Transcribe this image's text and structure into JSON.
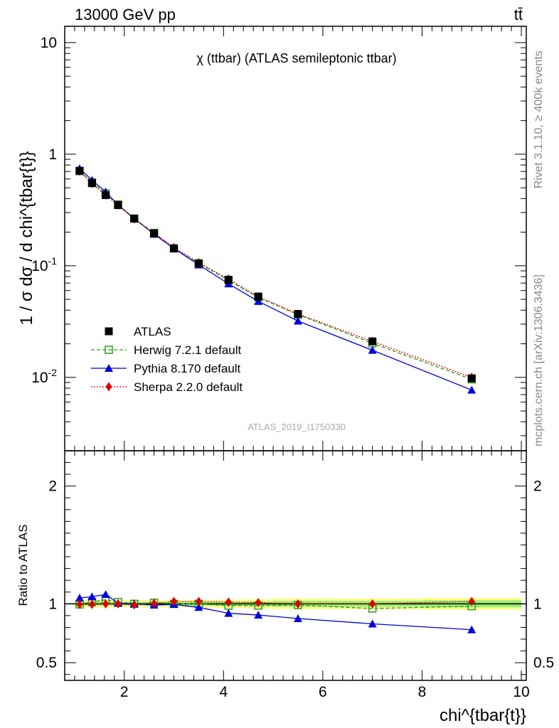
{
  "header": {
    "beam": "13000 GeV pp",
    "process": "tt̄"
  },
  "sidebar": {
    "rivet": "Rivet 3.1.10, ≥ 400k events",
    "source": "mcplots.cern.ch [arXiv:1306.3436]"
  },
  "colors": {
    "atlas": "#000000",
    "herwig": "#2a9a1a",
    "pythia": "#0000dd",
    "sherpa": "#dd0000",
    "band_inner": "#99ee77",
    "band_outer": "#ffff88"
  },
  "chart_data": [
    {
      "type": "scatter",
      "title": "χ (ttbar) (ATLAS semileptonic ttbar)",
      "annotation": "ATLAS_2019_I1750330",
      "ylabel": "1 / σ dσ / d chi^{tbar{t}}",
      "xlabel": "",
      "xlim": [
        0.8,
        10.1
      ],
      "ylim": [
        0.0022,
        14
      ],
      "yscale": "log",
      "yticks": [
        {
          "v": 10,
          "label": "10"
        },
        {
          "v": 1,
          "label": "1"
        },
        {
          "v": 0.1,
          "label": "10^-1"
        },
        {
          "v": 0.01,
          "label": "10^-2"
        }
      ],
      "legend_position": "lower-left",
      "series": [
        {
          "name": "ATLAS",
          "marker": "square",
          "x": [
            1.1,
            1.35,
            1.625,
            1.875,
            2.2,
            2.6,
            3.0,
            3.5,
            4.1,
            4.7,
            5.5,
            7.0,
            9.0
          ],
          "y": [
            0.71,
            0.55,
            0.43,
            0.35,
            0.265,
            0.195,
            0.143,
            0.105,
            0.075,
            0.053,
            0.037,
            0.021,
            0.0098
          ]
        },
        {
          "name": "Herwig 7.2.1 default",
          "marker": "open-square",
          "line": "dashed",
          "x": [
            1.1,
            1.35,
            1.625,
            1.875,
            2.2,
            2.6,
            3.0,
            3.5,
            4.1,
            4.7,
            5.5,
            7.0,
            9.0
          ],
          "y": [
            0.705,
            0.56,
            0.445,
            0.355,
            0.265,
            0.197,
            0.143,
            0.105,
            0.074,
            0.052,
            0.0365,
            0.0202,
            0.0096
          ]
        },
        {
          "name": "Pythia 8.170 default",
          "marker": "triangle",
          "line": "solid",
          "x": [
            1.1,
            1.35,
            1.625,
            1.875,
            2.2,
            2.6,
            3.0,
            3.5,
            4.1,
            4.7,
            5.5,
            7.0,
            9.0
          ],
          "y": [
            0.745,
            0.585,
            0.46,
            0.35,
            0.265,
            0.192,
            0.143,
            0.102,
            0.069,
            0.048,
            0.032,
            0.0175,
            0.0077
          ]
        },
        {
          "name": "Sherpa 2.2.0 default",
          "marker": "diamond",
          "line": "dotted",
          "x": [
            1.1,
            1.35,
            1.625,
            1.875,
            2.2,
            2.6,
            3.0,
            3.5,
            4.1,
            4.7,
            5.5,
            7.0,
            9.0
          ],
          "y": [
            0.705,
            0.545,
            0.43,
            0.35,
            0.262,
            0.196,
            0.146,
            0.107,
            0.076,
            0.053,
            0.037,
            0.021,
            0.01
          ]
        }
      ]
    },
    {
      "type": "line",
      "ylabel": "Ratio to ATLAS",
      "xlabel": "chi^{tbar{t}}",
      "xlim": [
        0.8,
        10.1
      ],
      "ylim": [
        0.35,
        2.3
      ],
      "xticks": [
        2,
        4,
        6,
        8,
        10
      ],
      "yticks": [
        {
          "v": 0.5,
          "label": "0.5"
        },
        {
          "v": 1,
          "label": "1"
        },
        {
          "v": 2,
          "label": "2"
        }
      ],
      "band": {
        "x_edges": [
          1.0,
          1.2,
          1.5,
          1.75,
          2.0,
          2.4,
          2.8,
          3.2,
          3.8,
          4.4,
          5.0,
          6.0,
          8.0,
          10.0
        ],
        "inner": [
          0.015,
          0.015,
          0.015,
          0.015,
          0.015,
          0.015,
          0.015,
          0.015,
          0.015,
          0.02,
          0.025,
          0.025,
          0.03
        ],
        "outer": [
          0.03,
          0.03,
          0.03,
          0.03,
          0.03,
          0.03,
          0.03,
          0.03,
          0.035,
          0.04,
          0.045,
          0.045,
          0.05
        ]
      },
      "series": [
        {
          "name": "Herwig 7.2.1 default",
          "x": [
            1.1,
            1.35,
            1.625,
            1.875,
            2.2,
            2.6,
            3.0,
            3.5,
            4.1,
            4.7,
            5.5,
            7.0,
            9.0
          ],
          "y": [
            0.995,
            1.015,
            1.035,
            1.015,
            1.0,
            1.01,
            1.0,
            1.0,
            0.985,
            0.985,
            0.99,
            0.96,
            0.98
          ]
        },
        {
          "name": "Pythia 8.170 default",
          "x": [
            1.1,
            1.35,
            1.625,
            1.875,
            2.2,
            2.6,
            3.0,
            3.5,
            4.1,
            4.7,
            5.5,
            7.0,
            9.0
          ],
          "y": [
            1.05,
            1.06,
            1.08,
            1.005,
            1.0,
            0.99,
            0.995,
            0.97,
            0.92,
            0.905,
            0.875,
            0.83,
            0.78
          ]
        },
        {
          "name": "Sherpa 2.2.0 default",
          "x": [
            1.1,
            1.35,
            1.625,
            1.875,
            2.2,
            2.6,
            3.0,
            3.5,
            4.1,
            4.7,
            5.5,
            7.0,
            9.0
          ],
          "y": [
            0.995,
            0.995,
            1.0,
            1.0,
            0.99,
            1.005,
            1.02,
            1.02,
            1.015,
            1.01,
            1.0,
            1.0,
            1.02
          ]
        }
      ]
    }
  ]
}
